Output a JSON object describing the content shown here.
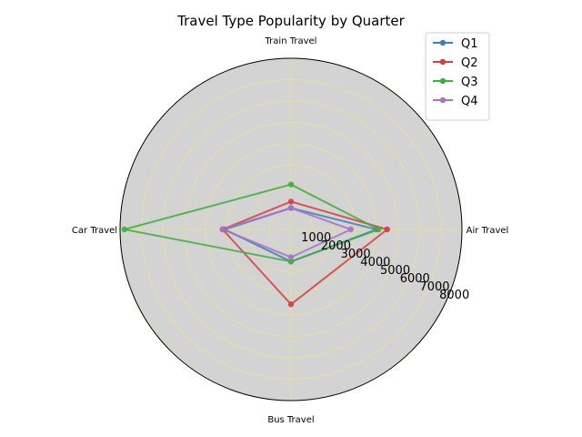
{
  "chart_data": {
    "type": "radar",
    "title": "Travel Type Popularity by Quarter",
    "categories": [
      "Air Travel",
      "Train Travel",
      "Car Travel",
      "Bus Travel"
    ],
    "rlim": [
      0,
      8000
    ],
    "rticks": [
      1000,
      2000,
      3000,
      4000,
      5000,
      6000,
      7000,
      8000
    ],
    "rtick_labels": [
      "1000",
      "2000",
      "3000",
      "4000",
      "5000",
      "6000",
      "7000",
      "8000"
    ],
    "grid": true,
    "background_color": "#d3d3d3",
    "grid_color": "#e8e28a",
    "legend_position": "top-right",
    "series": [
      {
        "name": "Q1",
        "color": "#3f7fb8",
        "values": [
          4000,
          1000,
          3100,
          1500
        ]
      },
      {
        "name": "Q2",
        "color": "#d43f3f",
        "values": [
          4500,
          1300,
          3200,
          3500
        ]
      },
      {
        "name": "Q3",
        "color": "#3fae3f",
        "values": [
          4100,
          2100,
          7800,
          1500
        ]
      },
      {
        "name": "Q4",
        "color": "#a772c8",
        "values": [
          2800,
          1000,
          3200,
          1300
        ]
      }
    ]
  }
}
